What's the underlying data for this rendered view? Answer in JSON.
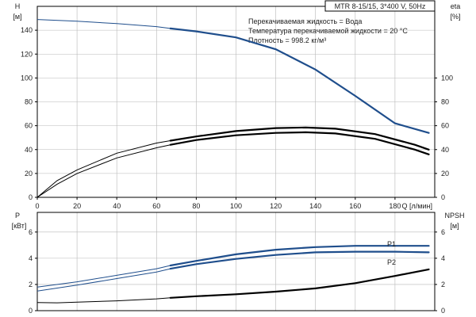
{
  "chart_data": [
    {
      "type": "line",
      "panel": "top",
      "model_label": "MTR 8-15/15, 3*400 V, 50Hz",
      "info_lines": [
        "Перекачиваемая жидкость = Вода",
        "Температура перекачиваемой жидкости = 20 °C",
        "Плотность = 998.2 кг/м³"
      ],
      "left_axis": {
        "label": "H",
        "unit": "[м]",
        "ticks": [
          "0",
          "20",
          "40",
          "60",
          "80",
          "100",
          "120",
          "140"
        ],
        "range": [
          0,
          160
        ]
      },
      "right_axis": {
        "label": "eta",
        "unit": "[%]",
        "ticks": [
          "0",
          "20",
          "40",
          "60",
          "80",
          "100"
        ],
        "range": [
          0,
          160
        ]
      },
      "x_axis": {
        "label": "Q [л/мин]",
        "ticks": [
          "0",
          "20",
          "40",
          "60",
          "80",
          "100",
          "120",
          "140",
          "160",
          "180"
        ],
        "range": [
          0,
          200
        ]
      },
      "grid": true,
      "series": [
        {
          "role": "H",
          "color": "#1f4e8c",
          "x": [
            0,
            20,
            40,
            60,
            67,
            80,
            100,
            120,
            140,
            160,
            180,
            197
          ],
          "y": [
            149,
            147.5,
            145.5,
            143,
            141.5,
            139,
            134,
            124,
            107,
            85,
            62,
            54
          ],
          "bold_from_x": 67
        },
        {
          "role": "eta",
          "color": "#000000",
          "x": [
            0,
            10,
            20,
            40,
            60,
            67,
            80,
            100,
            120,
            135,
            150,
            170,
            190,
            197
          ],
          "y": [
            0,
            14,
            23,
            37,
            45.5,
            47.5,
            51,
            55.5,
            58,
            58.5,
            57.5,
            53,
            44,
            40
          ],
          "bold_from_x": 67
        },
        {
          "role": "eta-motor",
          "color": "#000000",
          "x": [
            0,
            10,
            20,
            40,
            60,
            67,
            80,
            100,
            120,
            135,
            150,
            170,
            190,
            197
          ],
          "y": [
            0,
            11,
            20,
            33,
            41.5,
            44,
            48,
            52,
            54,
            54.5,
            53.5,
            49,
            40,
            36
          ],
          "bold_from_x": 67
        }
      ]
    },
    {
      "type": "line",
      "panel": "bottom",
      "left_axis": {
        "label": "P",
        "unit": "[кВт]",
        "ticks": [
          "0",
          "2",
          "4",
          "6"
        ],
        "range": [
          0,
          7.5
        ]
      },
      "right_axis": {
        "label": "NPSH",
        "unit": "[м]",
        "ticks": [
          "0",
          "2",
          "4",
          "6"
        ],
        "range": [
          0,
          7.5
        ]
      },
      "x_axis": {
        "range": [
          0,
          200
        ]
      },
      "grid": true,
      "series": [
        {
          "name": "P1",
          "color": "#1f4e8c",
          "x": [
            0,
            20,
            40,
            60,
            67,
            80,
            100,
            120,
            140,
            160,
            180,
            197
          ],
          "y": [
            1.8,
            2.2,
            2.7,
            3.2,
            3.45,
            3.8,
            4.3,
            4.65,
            4.85,
            4.95,
            4.95,
            4.95
          ],
          "bold_from_x": 67
        },
        {
          "name": "P2",
          "color": "#1f4e8c",
          "x": [
            0,
            20,
            40,
            60,
            67,
            80,
            100,
            120,
            140,
            160,
            180,
            197
          ],
          "y": [
            1.5,
            1.95,
            2.45,
            2.95,
            3.2,
            3.55,
            3.95,
            4.25,
            4.45,
            4.5,
            4.5,
            4.45
          ],
          "bold_from_x": 67
        },
        {
          "role": "NPSH",
          "color": "#000000",
          "x": [
            0,
            10,
            20,
            40,
            60,
            67,
            80,
            100,
            120,
            140,
            160,
            180,
            197
          ],
          "y": [
            0.62,
            0.6,
            0.65,
            0.75,
            0.9,
            0.98,
            1.1,
            1.25,
            1.45,
            1.7,
            2.1,
            2.65,
            3.15
          ],
          "bold_from_x": 67
        }
      ]
    }
  ]
}
